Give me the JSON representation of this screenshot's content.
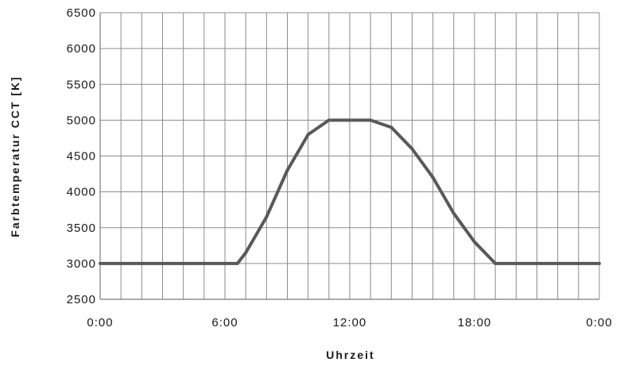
{
  "chart_data": {
    "type": "line",
    "title": "",
    "xlabel": "Uhrzeit",
    "ylabel": "Farbtemperatur CCT [K]",
    "xlim": [
      0,
      24
    ],
    "ylim": [
      2500,
      6500
    ],
    "y_ticks": [
      "2500",
      "3000",
      "3500",
      "4000",
      "4500",
      "5000",
      "5500",
      "6000",
      "6500"
    ],
    "x_ticks": [
      {
        "value": 0,
        "label": "0:00"
      },
      {
        "value": 6,
        "label": "6:00"
      },
      {
        "value": 12,
        "label": "12:00"
      },
      {
        "value": 18,
        "label": "18:00"
      },
      {
        "value": 24,
        "label": "0:00"
      }
    ],
    "grid": true,
    "legend": false,
    "series": [
      {
        "color": "#595959",
        "x": [
          0,
          1,
          2,
          3,
          4,
          5,
          6,
          6.6,
          7,
          8,
          9,
          10,
          11,
          12,
          13,
          14,
          15,
          16,
          17,
          18,
          19,
          20,
          21,
          22,
          23,
          24
        ],
        "y": [
          3000,
          3000,
          3000,
          3000,
          3000,
          3000,
          3000,
          3000,
          3150,
          3650,
          4300,
          4800,
          5000,
          5000,
          5000,
          4900,
          4600,
          4200,
          3700,
          3300,
          3000,
          3000,
          3000,
          3000,
          3000,
          3000
        ]
      }
    ]
  }
}
